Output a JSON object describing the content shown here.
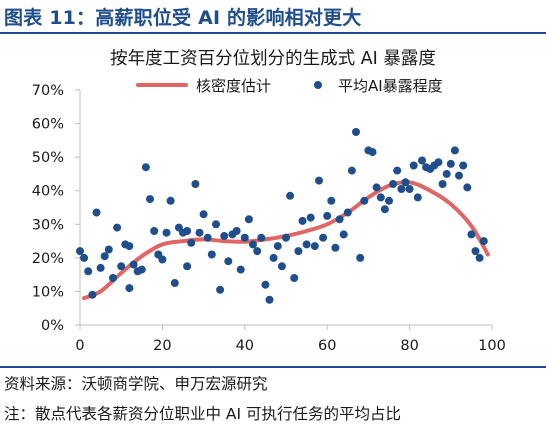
{
  "header": {
    "figure_title": "图表 11：高薪职位受 AI 的影响相对更大"
  },
  "footer": {
    "source": "资料来源：沃顿商学院、申万宏源研究",
    "note": "注：散点代表各薪资分位职业中 AI 可执行任务的平均占比"
  },
  "colors": {
    "title_blue": "#1f4e8c",
    "scatter": "#1f4e8c",
    "curve": "#e06666",
    "axis": "#bfbfbf"
  },
  "chart_data": {
    "type": "scatter",
    "title": "按年度工资百分位划分的生成式 AI 暴露度",
    "xlabel": "",
    "ylabel": "",
    "xlim": [
      0,
      100
    ],
    "ylim": [
      0,
      70
    ],
    "x_ticks": [
      0,
      20,
      40,
      60,
      80,
      100
    ],
    "y_ticks": [
      0,
      10,
      20,
      30,
      40,
      50,
      60,
      70
    ],
    "y_tick_format": "percent",
    "grid": false,
    "legend_position": "top",
    "legend": [
      {
        "label": "核密度估计",
        "kind": "line",
        "color": "#e06666"
      },
      {
        "label": "平均AI暴露程度",
        "kind": "dot",
        "color": "#1f4e8c"
      }
    ],
    "series": [
      {
        "name": "核密度估计",
        "type": "line",
        "x": [
          1,
          5,
          10,
          15,
          20,
          25,
          30,
          35,
          40,
          45,
          50,
          55,
          60,
          65,
          70,
          75,
          80,
          85,
          90,
          95,
          99
        ],
        "y": [
          8,
          10,
          15.5,
          20.5,
          24,
          25,
          25.5,
          25,
          24.8,
          25.5,
          26.5,
          28,
          30,
          33.5,
          38,
          41.5,
          42.5,
          40,
          36,
          29.5,
          21
        ]
      },
      {
        "name": "平均AI暴露程度",
        "type": "scatter",
        "points": [
          [
            0,
            22
          ],
          [
            1,
            20
          ],
          [
            2,
            16
          ],
          [
            3,
            9
          ],
          [
            4,
            33.5
          ],
          [
            5,
            17
          ],
          [
            6,
            20.5
          ],
          [
            7,
            22.5
          ],
          [
            8,
            14
          ],
          [
            9,
            29
          ],
          [
            10,
            17.5
          ],
          [
            11,
            24
          ],
          [
            12,
            23.5
          ],
          [
            12,
            11
          ],
          [
            13,
            18
          ],
          [
            14,
            16
          ],
          [
            15,
            16.5
          ],
          [
            16,
            47
          ],
          [
            17,
            37.5
          ],
          [
            18,
            28
          ],
          [
            19,
            21
          ],
          [
            20,
            19.5
          ],
          [
            21,
            27.5
          ],
          [
            22,
            37
          ],
          [
            23,
            12.5
          ],
          [
            24,
            29
          ],
          [
            25,
            27.5
          ],
          [
            26,
            28
          ],
          [
            26,
            17.5
          ],
          [
            27,
            24.5
          ],
          [
            28,
            42
          ],
          [
            29,
            27.5
          ],
          [
            30,
            33
          ],
          [
            31,
            26
          ],
          [
            32,
            21
          ],
          [
            33,
            30
          ],
          [
            34,
            10.5
          ],
          [
            35,
            26.5
          ],
          [
            36,
            19
          ],
          [
            37,
            27
          ],
          [
            38,
            28
          ],
          [
            39,
            16.5
          ],
          [
            40,
            26
          ],
          [
            41,
            31.5
          ],
          [
            42,
            24
          ],
          [
            43,
            22
          ],
          [
            44,
            26
          ],
          [
            45,
            12
          ],
          [
            46,
            7.5
          ],
          [
            47,
            20
          ],
          [
            48,
            23.5
          ],
          [
            49,
            17.5
          ],
          [
            50,
            26
          ],
          [
            51,
            38.5
          ],
          [
            52,
            14
          ],
          [
            53,
            22
          ],
          [
            54,
            31
          ],
          [
            55,
            24
          ],
          [
            56,
            32
          ],
          [
            57,
            23.5
          ],
          [
            58,
            43
          ],
          [
            59,
            26
          ],
          [
            60,
            32.5
          ],
          [
            61,
            37
          ],
          [
            62,
            23
          ],
          [
            63,
            31.5
          ],
          [
            64,
            27
          ],
          [
            65,
            33.5
          ],
          [
            66,
            46
          ],
          [
            67,
            57.5
          ],
          [
            68,
            20
          ],
          [
            69,
            37
          ],
          [
            70,
            52
          ],
          [
            71,
            51.5
          ],
          [
            72,
            41
          ],
          [
            73,
            38
          ],
          [
            74,
            34.5
          ],
          [
            75,
            37
          ],
          [
            76,
            42
          ],
          [
            77,
            46
          ],
          [
            78,
            40.5
          ],
          [
            79,
            42.5
          ],
          [
            80,
            40.5
          ],
          [
            81,
            47.5
          ],
          [
            82,
            38
          ],
          [
            83,
            49
          ],
          [
            84,
            47
          ],
          [
            85,
            46.5
          ],
          [
            86,
            47.5
          ],
          [
            87,
            48.5
          ],
          [
            88,
            42
          ],
          [
            89,
            45
          ],
          [
            90,
            48
          ],
          [
            91,
            52
          ],
          [
            92,
            44.5
          ],
          [
            93,
            47.5
          ],
          [
            94,
            41
          ],
          [
            95,
            27
          ],
          [
            96,
            22
          ],
          [
            97,
            20
          ],
          [
            98,
            25
          ]
        ]
      }
    ]
  }
}
